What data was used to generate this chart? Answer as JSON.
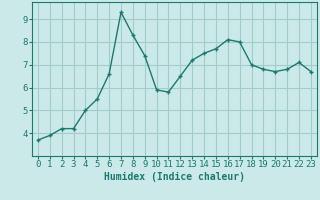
{
  "x": [
    0,
    1,
    2,
    3,
    4,
    5,
    6,
    7,
    8,
    9,
    10,
    11,
    12,
    13,
    14,
    15,
    16,
    17,
    18,
    19,
    20,
    21,
    22,
    23
  ],
  "y": [
    3.7,
    3.9,
    4.2,
    4.2,
    5.0,
    5.5,
    6.6,
    9.3,
    8.3,
    7.4,
    5.9,
    5.8,
    6.5,
    7.2,
    7.5,
    7.7,
    8.1,
    8.0,
    7.0,
    6.8,
    6.7,
    6.8,
    7.1,
    6.7
  ],
  "line_color": "#1a7a6e",
  "marker": "+",
  "bg_color": "#cce9e9",
  "grid_color": "#a0cccc",
  "xlabel": "Humidex (Indice chaleur)",
  "ylim": [
    3.0,
    9.75
  ],
  "xlim": [
    -0.5,
    23.5
  ],
  "yticks": [
    4,
    5,
    6,
    7,
    8,
    9
  ],
  "xticks": [
    0,
    1,
    2,
    3,
    4,
    5,
    6,
    7,
    8,
    9,
    10,
    11,
    12,
    13,
    14,
    15,
    16,
    17,
    18,
    19,
    20,
    21,
    22,
    23
  ],
  "xlabel_fontsize": 7,
  "tick_fontsize": 6.5,
  "line_width": 1.0,
  "marker_size": 3.5
}
